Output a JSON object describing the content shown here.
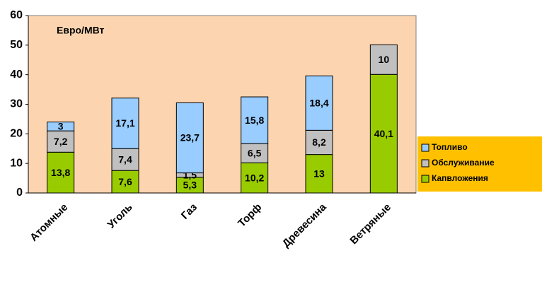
{
  "chart_data": {
    "type": "stacked_bar",
    "annotation": "Евро/МВт",
    "categories": [
      "Атомные",
      "Уголь",
      "Газ",
      "Торф",
      "Древесина",
      "Ветряные"
    ],
    "series": [
      {
        "name": "Капвложения",
        "color": "#99cc00",
        "values": [
          13.8,
          7.6,
          5.3,
          10.2,
          13,
          40.1
        ],
        "value_labels": [
          "13,8",
          "7,6",
          "5,3",
          "10,2",
          "13",
          "40,1"
        ]
      },
      {
        "name": "Обслуживание",
        "color": "#c0c0c0",
        "values": [
          7.2,
          7.4,
          1.5,
          6.5,
          8.2,
          10
        ],
        "value_labels": [
          "7,2",
          "7,4",
          "1,5",
          "6,5",
          "8,2",
          "10"
        ]
      },
      {
        "name": "Топливо",
        "color": "#99ccff",
        "values": [
          3,
          17.1,
          23.7,
          15.8,
          18.4,
          null
        ],
        "value_labels": [
          "3",
          "17,1",
          "23,7",
          "15,8",
          "18,4",
          null
        ]
      }
    ],
    "ylim": [
      0,
      60
    ],
    "yticks": [
      0,
      10,
      20,
      30,
      40,
      50,
      60
    ],
    "grid": false,
    "plot_background": "#fcd5b0",
    "legend_position": "right",
    "legend_background": "#ffc000"
  }
}
